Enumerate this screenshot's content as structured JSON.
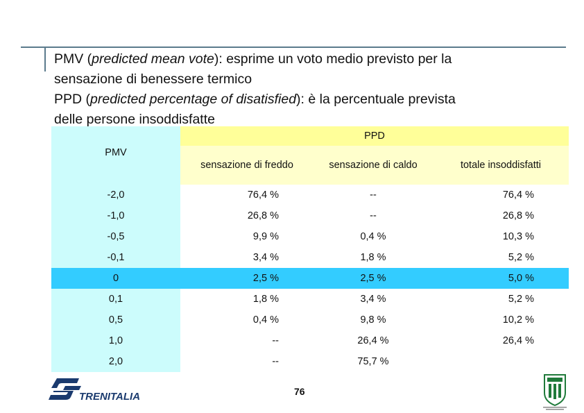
{
  "heading": {
    "l1_a": "PMV (",
    "l1_em": "predicted mean vote",
    "l1_b": "): esprime un voto medio previsto per la",
    "l2": "sensazione di benessere termico",
    "l3_a": "PPD (",
    "l3_em": "predicted percentage of disatisfied",
    "l3_b": "): è la percentuale prevista",
    "l4": "delle persone insoddisfatte"
  },
  "table": {
    "ppd_label": "PPD",
    "pmv_label": "PMV",
    "col1": "sensazione di freddo",
    "col2": "sensazione di caldo",
    "col3": "totale insoddisfatti",
    "rows": [
      {
        "pmv": "-2,0",
        "cold": "76,4 %",
        "hot": "--",
        "tot": "76,4 %"
      },
      {
        "pmv": "-1,0",
        "cold": "26,8 %",
        "hot": "--",
        "tot": "26,8 %"
      },
      {
        "pmv": "-0,5",
        "cold": "9,9 %",
        "hot": "0,4 %",
        "tot": "10,3 %"
      },
      {
        "pmv": "-0,1",
        "cold": "3,4 %",
        "hot": "1,8 %",
        "tot": "5,2 %"
      },
      {
        "pmv": "0",
        "cold": "2,5 %",
        "hot": "2,5 %",
        "tot": "5,0 %"
      },
      {
        "pmv": "0,1",
        "cold": "1,8 %",
        "hot": "3,4 %",
        "tot": "5,2 %"
      },
      {
        "pmv": "0,5",
        "cold": "0,4 %",
        "hot": "9,8 %",
        "tot": "10,2 %"
      },
      {
        "pmv": "1,0",
        "cold": "--",
        "hot": "26,4 %",
        "tot": "26,4 %"
      },
      {
        "pmv": "2,0",
        "cold": "--",
        "hot": "75,7 %",
        "tot": ""
      }
    ]
  },
  "footer": {
    "brand": "TRENITALIA",
    "page": "76"
  },
  "colors": {
    "pmv_col": "#ccfcfc",
    "ppd_header": "#ffff99",
    "highlight_row": "#33ccff",
    "rule": "#5a7a8c",
    "brand_blue": "#1a3a6e"
  }
}
